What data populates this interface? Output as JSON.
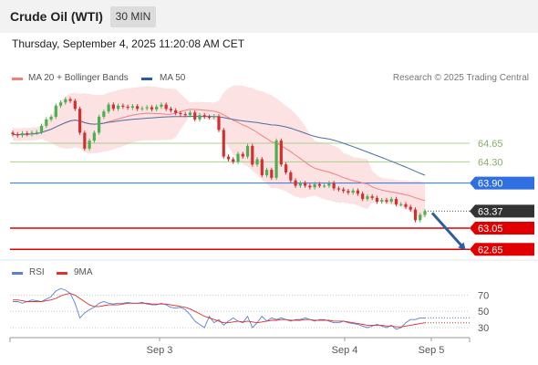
{
  "header": {
    "title": "Crude Oil (WTI)",
    "timeframe": "30 MIN",
    "datetime": "Thursday, September 4, 2025 11:20:08 AM CET"
  },
  "legend": {
    "ma20_label": "MA 20 + Bollinger Bands",
    "ma50_label": "MA 50",
    "credit": "Research © 2025 Trading Central",
    "rsi_label": "RSI",
    "rsi_ma_label": "9MA"
  },
  "colors": {
    "ma20": "#f08080",
    "bollinger_fill": "#fbd6d6",
    "ma50": "#4a6fa5",
    "rsi": "#5b7fd6",
    "rsi_ma": "#e03030",
    "support": "#e00000",
    "resistance": "#a8d08d",
    "current_price": "#333333",
    "ma50_price": "#2f6fe0",
    "candle_up": "#4caf50",
    "candle_down": "#d32f2f"
  },
  "chart_data": [
    {
      "type": "candlestick",
      "x_ticks": [
        "Sep 3",
        "Sep 4",
        "Sep 5"
      ],
      "ylim": [
        62.5,
        65.7
      ],
      "resistance_levels": [
        64.65,
        64.3
      ],
      "support_levels": [
        63.05,
        62.65
      ],
      "ma50_value": 63.9,
      "last_price": 63.37,
      "price_labels": [
        "64.65",
        "64.30",
        "63.90",
        "63.37",
        "63.05",
        "62.65"
      ],
      "close": [
        64.82,
        64.8,
        64.84,
        64.82,
        64.85,
        64.86,
        64.98,
        65.1,
        65.15,
        65.36,
        65.42,
        65.48,
        65.45,
        65.3,
        64.85,
        64.55,
        64.7,
        64.85,
        65.15,
        65.25,
        65.38,
        65.3,
        65.36,
        65.34,
        65.32,
        65.35,
        65.3,
        65.31,
        65.33,
        65.29,
        65.34,
        65.38,
        65.3,
        65.27,
        65.22,
        65.2,
        65.18,
        65.23,
        65.1,
        65.18,
        65.15,
        65.14,
        65.16,
        64.9,
        64.4,
        64.35,
        64.3,
        64.45,
        64.4,
        64.6,
        64.25,
        64.35,
        64.05,
        64.15,
        64.0,
        64.7,
        64.25,
        64.1,
        63.95,
        63.85,
        63.9,
        63.85,
        63.82,
        63.88,
        63.85,
        63.85,
        63.9,
        63.8,
        63.78,
        63.75,
        63.72,
        63.76,
        63.7,
        63.6,
        63.65,
        63.62,
        63.55,
        63.58,
        63.55,
        63.6,
        63.5,
        63.5,
        63.45,
        63.4,
        63.2,
        63.3,
        63.37
      ],
      "open": [
        64.85,
        64.82,
        64.8,
        64.84,
        64.82,
        64.85,
        64.86,
        64.98,
        65.1,
        65.15,
        65.36,
        65.42,
        65.48,
        65.45,
        65.3,
        64.85,
        64.55,
        64.7,
        64.85,
        65.15,
        65.25,
        65.38,
        65.3,
        65.36,
        65.34,
        65.32,
        65.35,
        65.3,
        65.31,
        65.33,
        65.29,
        65.34,
        65.38,
        65.3,
        65.27,
        65.22,
        65.2,
        65.18,
        65.23,
        65.1,
        65.18,
        65.15,
        65.14,
        65.16,
        64.9,
        64.4,
        64.35,
        64.3,
        64.45,
        64.4,
        64.6,
        64.25,
        64.35,
        64.05,
        64.15,
        64.0,
        64.7,
        64.25,
        64.1,
        63.95,
        63.85,
        63.9,
        63.85,
        63.82,
        63.88,
        63.85,
        63.85,
        63.9,
        63.8,
        63.78,
        63.75,
        63.72,
        63.76,
        63.7,
        63.6,
        63.65,
        63.62,
        63.55,
        63.58,
        63.55,
        63.6,
        63.5,
        63.5,
        63.45,
        63.4,
        63.2,
        63.3
      ],
      "rsi_ticks": [
        70,
        50,
        30
      ],
      "rsi_ylim": [
        20,
        85
      ],
      "rsi": [
        62,
        62,
        60,
        62,
        64,
        63,
        62,
        65,
        68,
        75,
        78,
        76,
        72,
        60,
        42,
        48,
        52,
        55,
        60,
        62,
        60,
        59,
        60,
        60,
        61,
        60,
        60,
        61,
        59,
        58,
        58,
        60,
        58,
        55,
        54,
        55,
        52,
        46,
        38,
        34,
        30,
        44,
        36,
        40,
        33,
        38,
        42,
        38,
        36,
        44,
        30,
        36,
        44,
        38,
        42,
        40,
        42,
        40,
        38,
        40,
        40,
        42,
        40,
        38,
        40,
        40,
        38,
        36,
        36,
        38,
        36,
        35,
        34,
        32,
        30,
        32,
        34,
        32,
        30,
        33,
        28,
        30,
        36,
        40,
        40,
        42,
        42
      ],
      "rsi_ma": [
        64,
        64,
        63,
        62,
        62,
        62,
        62,
        63,
        64,
        66,
        69,
        71,
        72,
        70,
        66,
        62,
        58,
        56,
        56,
        57,
        58,
        58,
        58,
        59,
        60,
        60,
        60,
        60,
        60,
        59,
        59,
        59,
        59,
        58,
        57,
        56,
        55,
        53,
        50,
        47,
        44,
        42,
        40,
        38,
        36,
        36,
        37,
        38,
        37,
        38,
        37,
        36,
        37,
        38,
        39,
        39,
        40,
        40,
        39,
        39,
        39,
        40,
        40,
        39,
        39,
        39,
        39,
        38,
        38,
        38,
        37,
        36,
        35,
        34,
        33,
        33,
        33,
        33,
        32,
        32,
        31,
        31,
        32,
        33,
        34,
        35,
        36
      ]
    }
  ]
}
